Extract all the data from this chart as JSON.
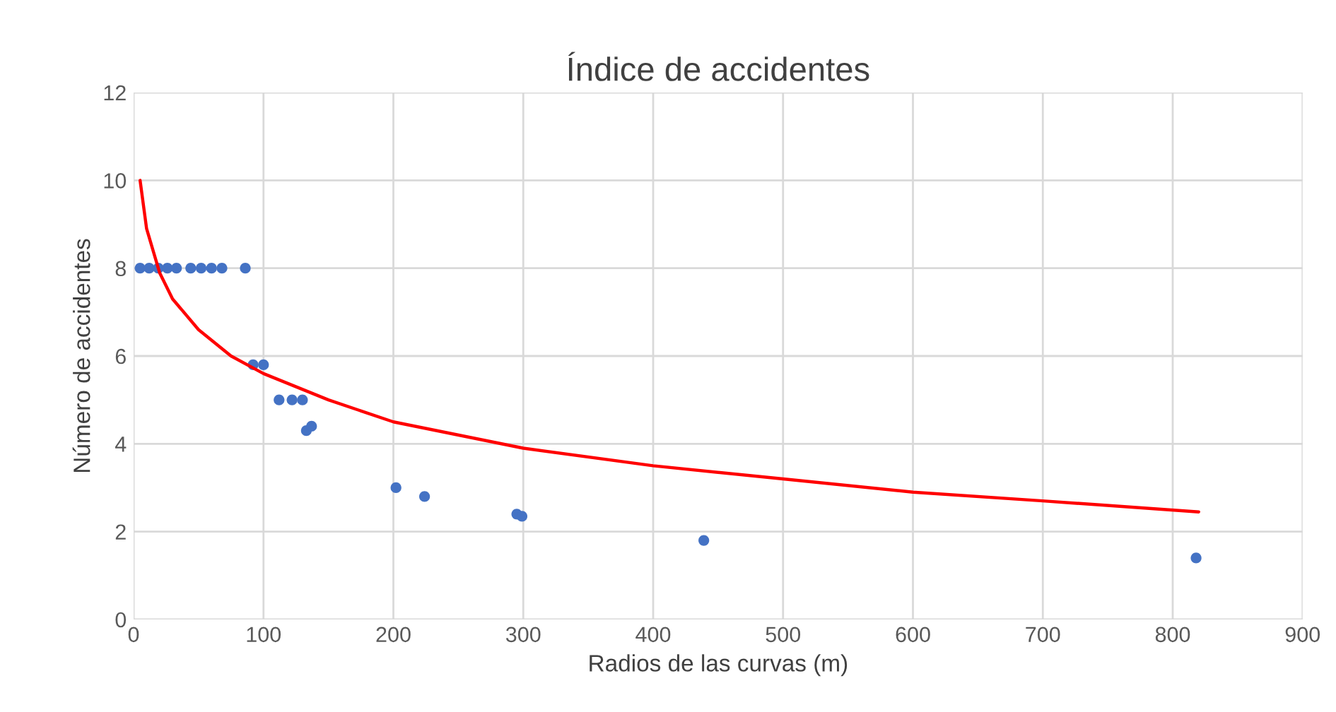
{
  "chart_data": {
    "type": "scatter",
    "title": "Índice de accidentes",
    "xlabel": "Radios de las curvas (m)",
    "ylabel": "Número de accidentes",
    "xlim": [
      0,
      900
    ],
    "xticks": [
      0,
      100,
      200,
      300,
      400,
      500,
      600,
      700,
      800,
      900
    ],
    "ylim": [
      0,
      12
    ],
    "yticks": [
      0,
      2,
      4,
      6,
      8,
      10,
      12
    ],
    "grid": true,
    "legend": false,
    "series": [
      {
        "color": "#4472c4",
        "marker": "circle",
        "x": [
          5,
          12,
          19,
          26,
          33,
          44,
          52,
          60,
          68,
          86,
          92,
          100,
          112,
          122,
          130,
          133,
          137,
          202,
          224,
          295,
          299,
          439,
          818
        ],
        "values": [
          8,
          8,
          8,
          8,
          8,
          8,
          8,
          8,
          8,
          8,
          5.8,
          5.8,
          5,
          5,
          5,
          4.3,
          4.4,
          3.0,
          2.8,
          2.4,
          2.35,
          1.8,
          1.4
        ]
      },
      {
        "type": "line",
        "color": "#ff0000",
        "marker": "none",
        "line_style": "solid",
        "x": [
          5,
          10,
          20,
          30,
          50,
          75,
          100,
          150,
          200,
          300,
          400,
          500,
          600,
          700,
          820
        ],
        "values": [
          10.0,
          8.9,
          7.9,
          7.3,
          6.6,
          6.0,
          5.6,
          5.0,
          4.5,
          3.9,
          3.5,
          3.2,
          2.9,
          2.7,
          2.45
        ]
      }
    ]
  }
}
